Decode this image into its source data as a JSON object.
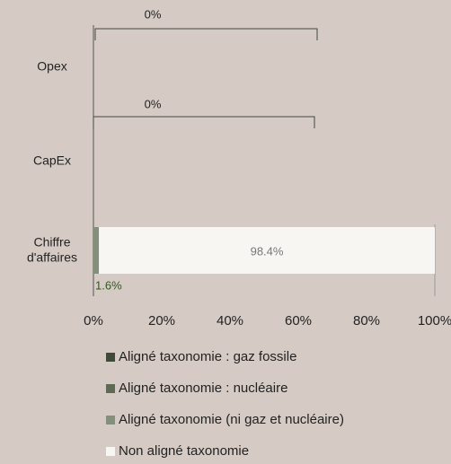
{
  "chart_data": {
    "type": "stacked_barh",
    "categories": [
      "Opex",
      "CapEx",
      "Chiffre d'affaires"
    ],
    "series": [
      {
        "name": "Aligné taxonomie : gaz fossile",
        "color": "#3f4a38",
        "values": [
          0,
          0,
          0
        ]
      },
      {
        "name": "Aligné taxonomie : nucléaire",
        "color": "#5f6a55",
        "values": [
          0,
          0,
          0
        ]
      },
      {
        "name": "Aligné taxonomie (ni gaz et nucléaire)",
        "color": "#84907c",
        "values": [
          0,
          0,
          1.6
        ],
        "value_labels": [
          null,
          null,
          "1.6%"
        ],
        "label_color": "#2f5a1e"
      },
      {
        "name": "Non aligné taxonomie",
        "color": "#f8f6f3",
        "values": [
          0,
          0,
          98.4
        ],
        "value_labels": [
          null,
          null,
          "98.4%"
        ],
        "label_color": "#777777"
      }
    ],
    "annotations": [
      {
        "label": "0%",
        "category": "Opex"
      },
      {
        "label": "0%",
        "category": "CapEx"
      }
    ],
    "xlim": [
      0,
      100
    ],
    "xticks": [
      {
        "value": 0,
        "label": "0%"
      },
      {
        "value": 20,
        "label": "20%"
      },
      {
        "value": 40,
        "label": "40%"
      },
      {
        "value": 60,
        "label": "60%"
      },
      {
        "value": 80,
        "label": "80%"
      },
      {
        "value": 100,
        "label": "100%"
      }
    ]
  }
}
